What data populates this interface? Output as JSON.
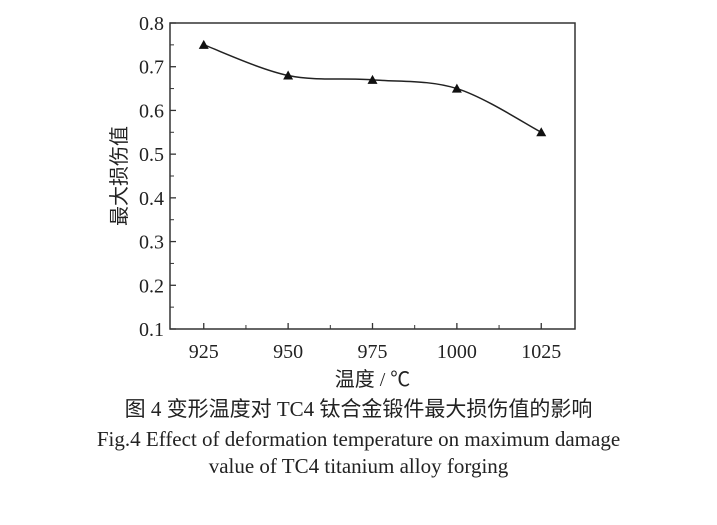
{
  "chart_data": {
    "type": "line",
    "xlabel": "温度 / ℃",
    "ylabel": "最大损伤值",
    "x": [
      925,
      950,
      975,
      1000,
      1025
    ],
    "values": [
      0.75,
      0.68,
      0.67,
      0.65,
      0.55
    ],
    "xticks": [
      "925",
      "950",
      "975",
      "1000",
      "1025"
    ],
    "yticks": [
      "0.1",
      "0.2",
      "0.3",
      "0.4",
      "0.5",
      "0.6",
      "0.7",
      "0.8"
    ],
    "xlim": [
      915,
      1035
    ],
    "ylim": [
      0.1,
      0.8
    ],
    "marker": "triangle",
    "line_style": "smooth",
    "grid": false,
    "colors": {
      "line": "#222222"
    }
  },
  "caption": {
    "zh": "图 4  变形温度对 TC4 钛合金锻件最大损伤值的影响",
    "en_line1": "Fig.4  Effect of deformation temperature on maximum damage",
    "en_line2": "value of TC4 titanium alloy forging"
  }
}
